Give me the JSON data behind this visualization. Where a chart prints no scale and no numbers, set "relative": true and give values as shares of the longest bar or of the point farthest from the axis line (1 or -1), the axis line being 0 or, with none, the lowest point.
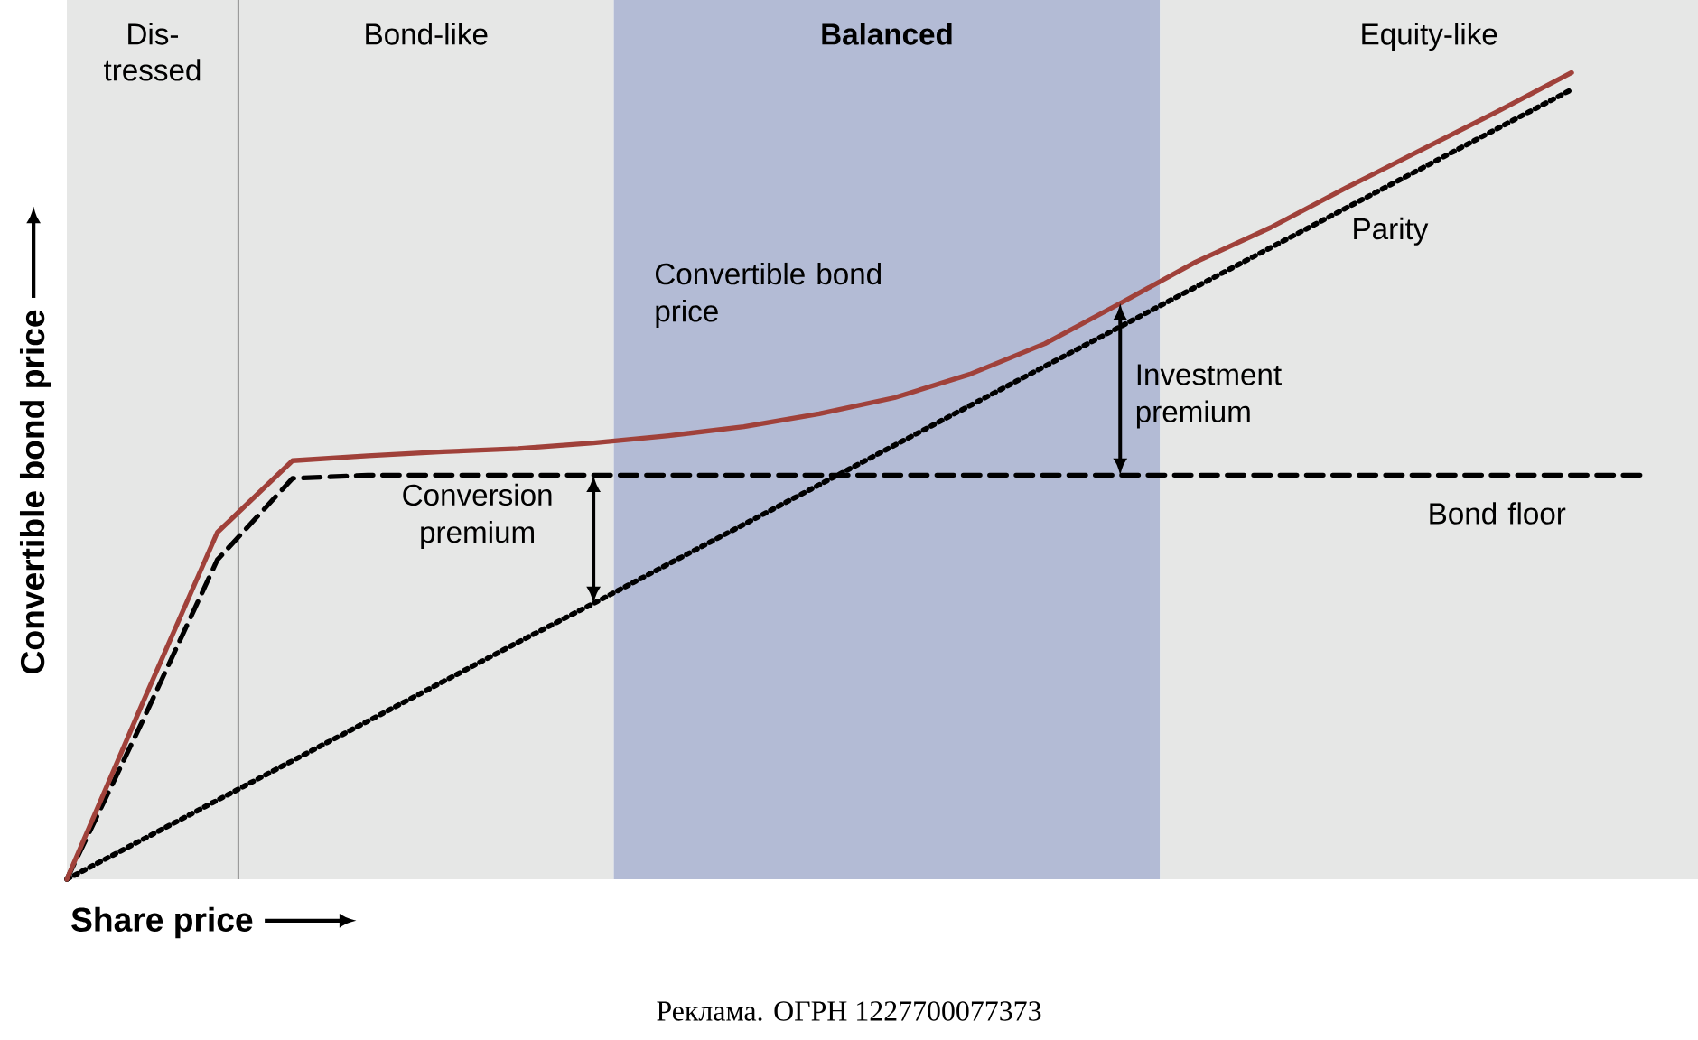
{
  "chart_data": {
    "type": "line",
    "relative": true,
    "xlabel": "Share price",
    "ylabel": "Convertible bond price",
    "categories": [
      null,
      null,
      null,
      null,
      null,
      null,
      null,
      null,
      null,
      null,
      null,
      null,
      null,
      null,
      null,
      null,
      null,
      null,
      null,
      null,
      null,
      null
    ],
    "series": [
      {
        "name": "Convertible bond price",
        "color": "#a0413a",
        "line_style": "solid",
        "values": [
          0,
          0.217,
          0.43,
          0.519,
          0.525,
          0.53,
          0.534,
          0.541,
          0.55,
          0.561,
          0.577,
          0.597,
          0.626,
          0.664,
          0.714,
          0.765,
          0.808,
          0.857,
          0.904,
          0.951,
          1.0,
          null
        ]
      },
      {
        "name": "Bond floor",
        "color": "#000000",
        "line_style": "dashed",
        "values": [
          0,
          0.195,
          0.396,
          0.497,
          0.501,
          0.501,
          0.501,
          0.501,
          0.501,
          0.501,
          0.501,
          0.501,
          0.501,
          0.501,
          0.501,
          0.501,
          0.501,
          0.501,
          0.501,
          0.501,
          0.501,
          0.501
        ]
      },
      {
        "name": "Parity",
        "color": "#000000",
        "line_style": "dotted",
        "values": [
          0,
          0.049,
          0.098,
          0.147,
          0.196,
          0.245,
          0.294,
          0.342,
          0.391,
          0.44,
          0.489,
          0.538,
          0.587,
          0.636,
          0.685,
          0.734,
          0.783,
          0.832,
          0.881,
          0.93,
          0.979,
          null
        ]
      }
    ],
    "annotations": [
      "Conversion premium",
      "Investment premium",
      "Реклама. ОГРН 1227700077373",
      "Dis- tressed",
      "Bond-like",
      "**Balanced**",
      "Equity-like"
    ],
    "marker": "none"
  }
}
